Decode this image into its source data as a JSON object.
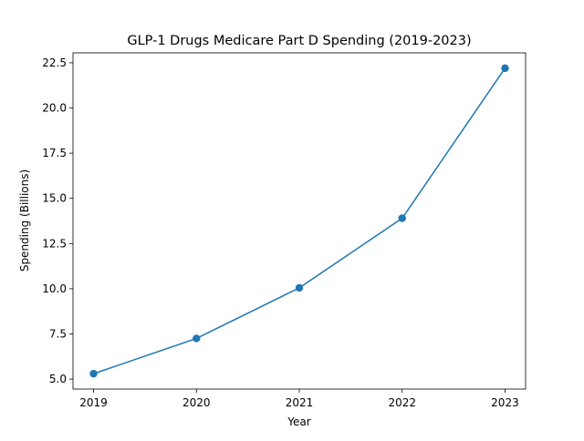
{
  "chart_data": {
    "type": "line",
    "title": "GLP-1 Drugs Medicare Part D Spending (2019-2023)",
    "xlabel": "Year",
    "ylabel": "Spending (Billions)",
    "x": [
      2019,
      2020,
      2021,
      2022,
      2023
    ],
    "x_tick_labels": [
      "2019",
      "2020",
      "2021",
      "2022",
      "2023"
    ],
    "series": [
      {
        "values": [
          5.3,
          7.25,
          10.05,
          13.9,
          22.2
        ],
        "color": "#1f77b4"
      }
    ],
    "xlim": [
      2018.8,
      2023.2
    ],
    "ylim": [
      4.45,
      23.05
    ],
    "y_ticks": [
      5.0,
      7.5,
      10.0,
      12.5,
      15.0,
      17.5,
      20.0,
      22.5
    ],
    "y_tick_labels": [
      "5.0",
      "7.5",
      "10.0",
      "12.5",
      "15.0",
      "17.5",
      "20.0",
      "22.5"
    ],
    "grid": false,
    "legend": "none",
    "markers": "circle"
  }
}
